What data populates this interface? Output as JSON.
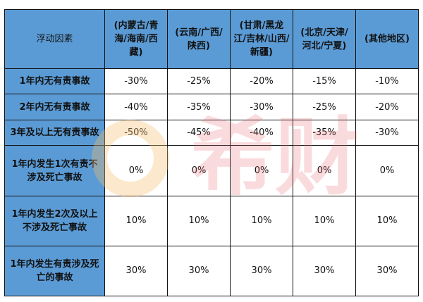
{
  "header": [
    "浮动因素",
    "(内蒙古/青海/海南/西藏)",
    "(云南/广西/陕西)",
    "(甘肃/黑龙江/吉林/山西/新疆)",
    "(北京/天津/河北/宁夏)",
    "(其他地区)"
  ],
  "rows": [
    {
      "label": "1年内无有责事故",
      "values": [
        "-30%",
        "-25%",
        "-20%",
        "-15%",
        "-10%"
      ]
    },
    {
      "label": "2年内无有责事故",
      "values": [
        "-40%",
        "-35%",
        "-30%",
        "-25%",
        "-20%"
      ]
    },
    {
      "label": "3年及以上无有责事故",
      "values": [
        "-50%",
        "-45%",
        "-40%",
        "-35%",
        "-30%"
      ]
    },
    {
      "label": "1年内发生1次有责不涉及死亡事故",
      "values": [
        "0%",
        "0%",
        "0%",
        "0%",
        "0%"
      ]
    },
    {
      "label": "1年内发生2次及以上不涉及死亡事故",
      "values": [
        "10%",
        "10%",
        "10%",
        "10%",
        "10%"
      ]
    },
    {
      "label": "1年内发生有责涉及死亡的事故",
      "values": [
        "30%",
        "30%",
        "30%",
        "30%",
        "30%"
      ]
    }
  ],
  "watermark": {
    "text": "希财",
    "colors": {
      "header": "#5b9bd5",
      "logo": "#f7be6e",
      "text": "#e65a64"
    }
  }
}
